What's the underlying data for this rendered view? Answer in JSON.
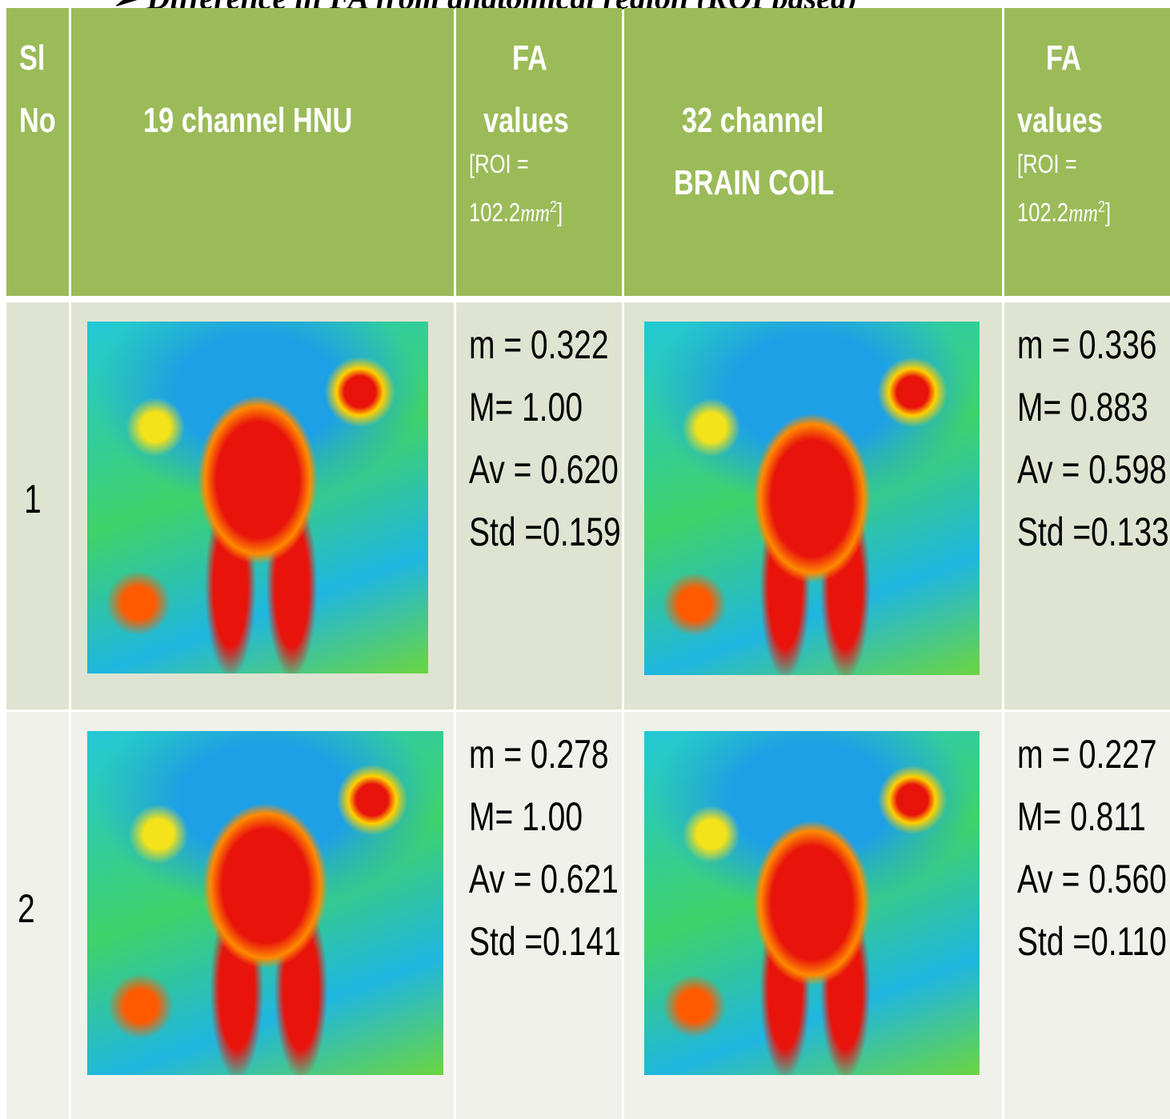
{
  "title": "Difference in FA from anatomical region (ROI based)",
  "table": {
    "header": {
      "sl_no": [
        "Sl",
        "No"
      ],
      "coil_1": [
        "19 channel  HNU"
      ],
      "fa_1": {
        "title": "FA",
        "subtitle": "values",
        "roi_prefix": "[ROI =",
        "roi_value": "102.2",
        "roi_unit": "mm",
        "roi_exp": "2",
        "roi_suffix": "]"
      },
      "coil_2": [
        "32 channel",
        "BRAIN  COIL"
      ],
      "fa_2": {
        "title": "FA",
        "subtitle": "values",
        "roi_prefix": "[ROI =",
        "roi_value": "102.2",
        "roi_unit": "mm",
        "roi_exp": "2",
        "roi_suffix": "]"
      }
    },
    "rows": [
      {
        "sl": "1",
        "fa_1": [
          "m = 0.322",
          "M=  1.00",
          "Av = 0.620",
          "Std =0.159"
        ],
        "fa_2": [
          "m = 0.336",
          "M=  0.883",
          "Av = 0.598",
          "Std =0.133"
        ]
      },
      {
        "sl": "2",
        "fa_1": [
          "m = 0.278",
          "M=  1.00",
          "Av = 0.621",
          "Std =0.141"
        ],
        "fa_2": [
          "m = 0.227",
          "M=  0.811",
          "Av = 0.560",
          "Std =0.110"
        ]
      }
    ]
  }
}
